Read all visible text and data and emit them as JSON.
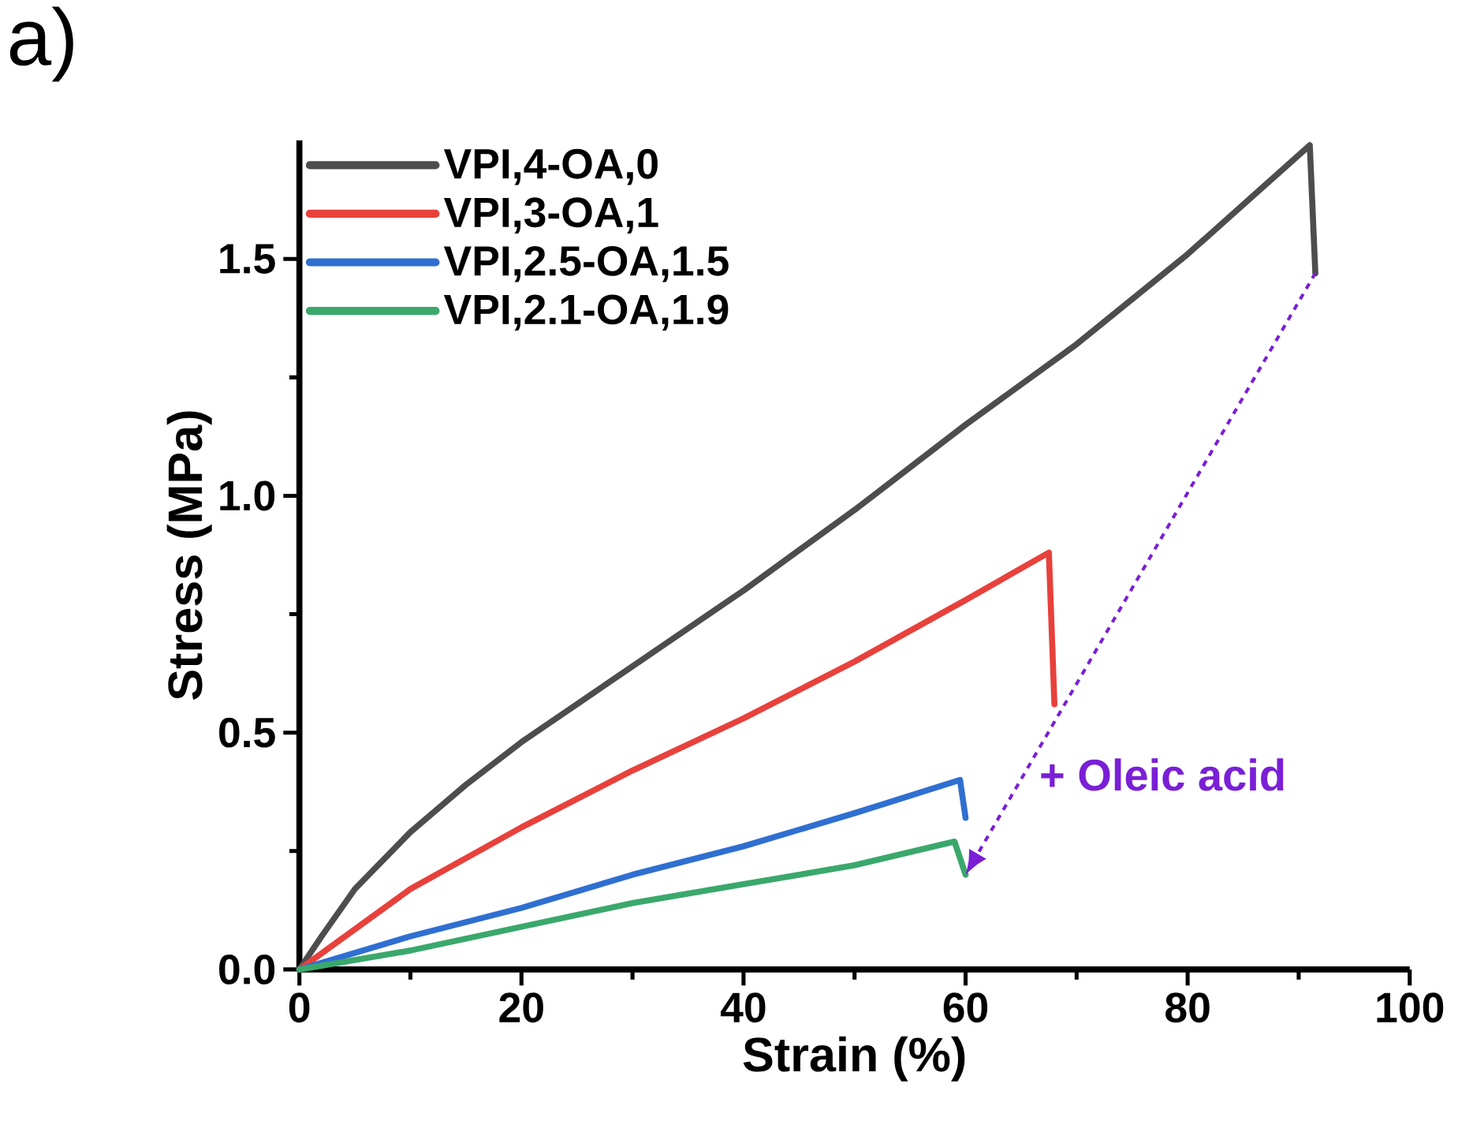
{
  "chart_data": {
    "type": "line",
    "xlabel": "Strain (%)",
    "ylabel": "Stress (MPa)",
    "xlim": [
      0,
      100
    ],
    "ylim": [
      0,
      1.75
    ],
    "xticks": [
      0,
      20,
      40,
      60,
      80,
      100
    ],
    "yticks": [
      {
        "value": 0,
        "label": "0.0"
      },
      {
        "value": 0.5,
        "label": "0.5"
      },
      {
        "value": 1.0,
        "label": "1.0"
      },
      {
        "value": 1.5,
        "label": "1.5"
      }
    ],
    "grid": false,
    "legend": "top left",
    "marker": "none",
    "line_style": "solid",
    "annotations": [
      "a)",
      "+ Oleic acid"
    ],
    "series": [
      {
        "name": "VPI,4-OA,0",
        "color": "#4d4d4d",
        "x": [
          0,
          2,
          5,
          10,
          15,
          20,
          30,
          40,
          50,
          60,
          70,
          80,
          91,
          91.5
        ],
        "values": [
          0,
          0.07,
          0.17,
          0.29,
          0.39,
          0.48,
          0.64,
          0.8,
          0.97,
          1.15,
          1.32,
          1.51,
          1.74,
          1.47
        ]
      },
      {
        "name": "VPI,3-OA,1",
        "color": "#e8413c",
        "x": [
          0,
          10,
          20,
          30,
          40,
          50,
          60,
          67.5,
          68
        ],
        "values": [
          0,
          0.17,
          0.3,
          0.42,
          0.53,
          0.65,
          0.78,
          0.88,
          0.56
        ]
      },
      {
        "name": "VPI,2.5-OA,1.5",
        "color": "#2f6fd1",
        "x": [
          0,
          10,
          20,
          30,
          40,
          50,
          59.5,
          60
        ],
        "values": [
          0,
          0.07,
          0.13,
          0.2,
          0.26,
          0.33,
          0.4,
          0.32
        ]
      },
      {
        "name": "VPI,2.1-OA,1.9",
        "color": "#3aa86b",
        "x": [
          0,
          10,
          20,
          30,
          40,
          50,
          59,
          60
        ],
        "values": [
          0,
          0.04,
          0.09,
          0.14,
          0.18,
          0.22,
          0.27,
          0.2
        ]
      }
    ]
  }
}
